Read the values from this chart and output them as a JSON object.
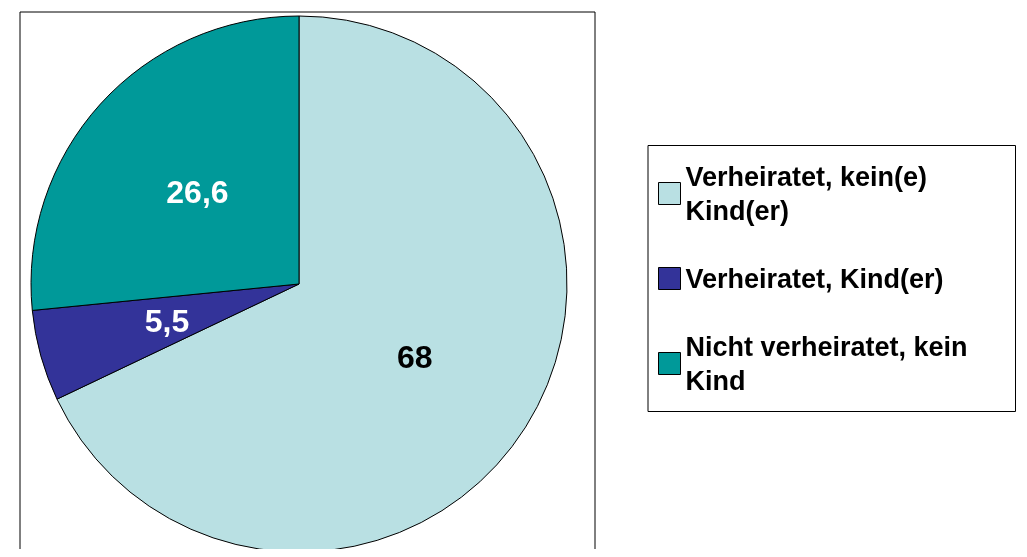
{
  "chart_data": {
    "type": "pie",
    "categories": [
      "Verheiratet, kein(e) Kind(er)",
      "Verheiratet, Kind(er)",
      "Nicht verheiratet, kein Kind"
    ],
    "values": [
      68,
      5.5,
      26.6
    ],
    "colors": [
      "#b9e0e3",
      "#333399",
      "#009999"
    ],
    "value_labels": [
      "68",
      "5,5",
      "26,6"
    ],
    "legend": "right"
  }
}
